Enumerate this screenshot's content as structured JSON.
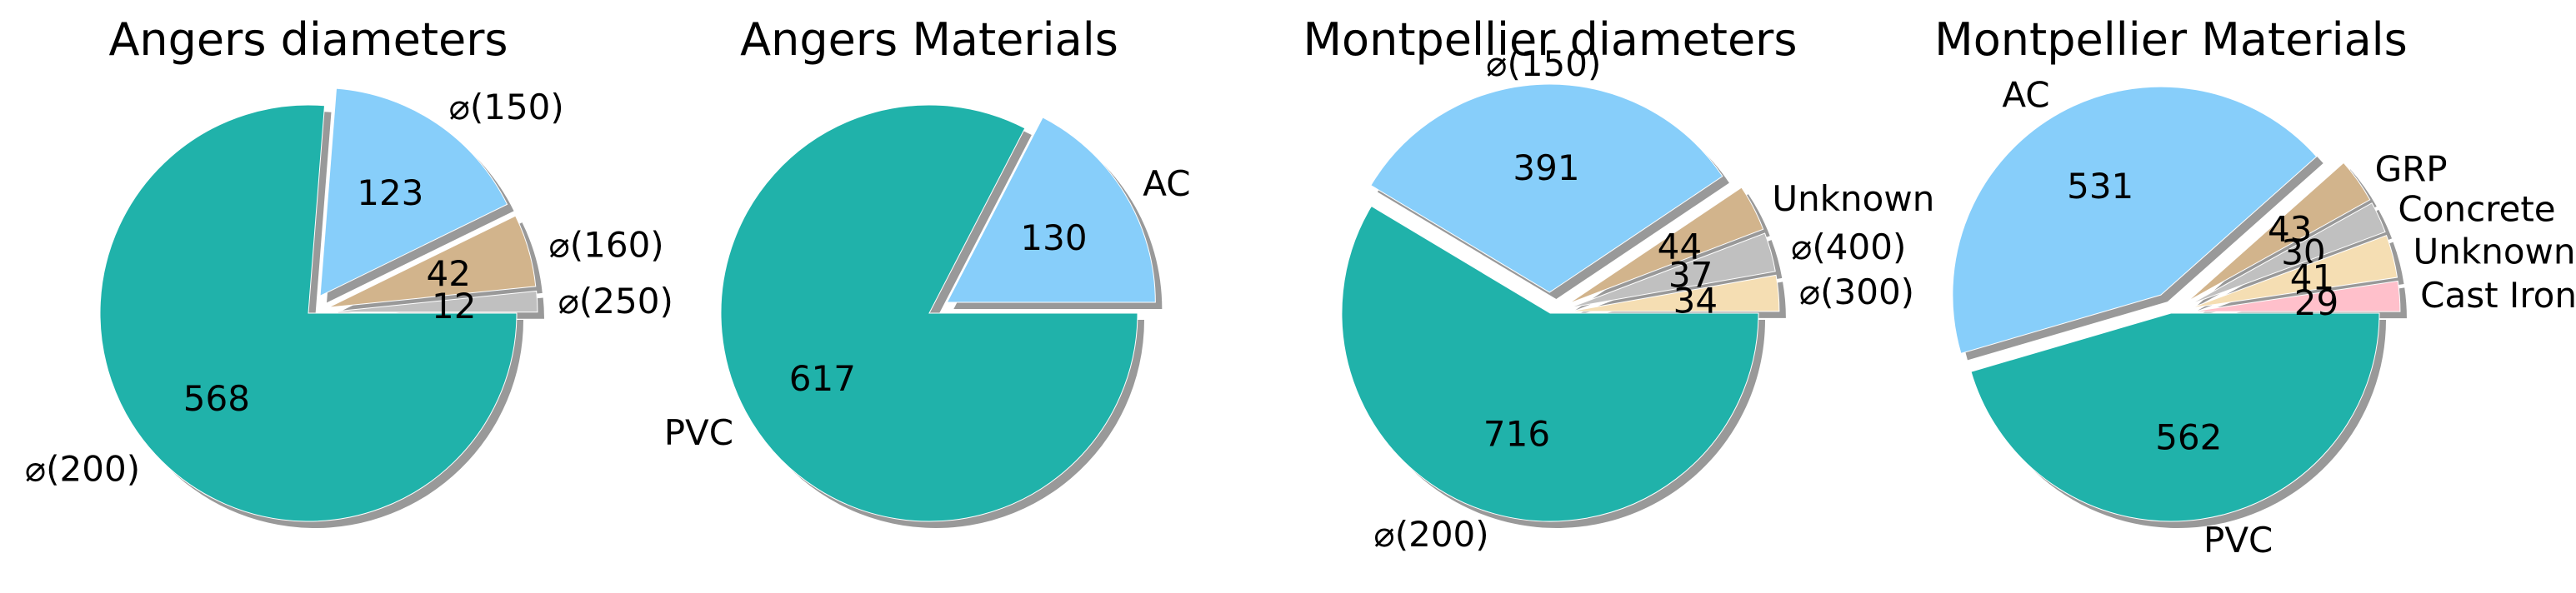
{
  "chart_data": [
    {
      "type": "pie",
      "title": "Angers diameters",
      "slices": [
        {
          "label": "⌀(200)",
          "value": 568,
          "color": "#20b2aa",
          "explode": false
        },
        {
          "label": "⌀(150)",
          "value": 123,
          "color": "#87cefa",
          "explode": true
        },
        {
          "label": "⌀(160)",
          "value": 42,
          "color": "#d2b48c",
          "explode": true
        },
        {
          "label": "⌀(250)",
          "value": 12,
          "color": "#c0c0c0",
          "explode": true
        }
      ]
    },
    {
      "type": "pie",
      "title": "Angers Materials",
      "slices": [
        {
          "label": "PVC",
          "value": 617,
          "color": "#20b2aa",
          "explode": false
        },
        {
          "label": "AC",
          "value": 130,
          "color": "#87cefa",
          "explode": true
        }
      ]
    },
    {
      "type": "pie",
      "title": "Montpellier diameters",
      "slices": [
        {
          "label": "⌀(200)",
          "value": 716,
          "color": "#20b2aa",
          "explode": false
        },
        {
          "label": "⌀(150)",
          "value": 391,
          "color": "#87cefa",
          "explode": true
        },
        {
          "label": "Unknown",
          "value": 44,
          "color": "#d2b48c",
          "explode": true
        },
        {
          "label": "⌀(400)",
          "value": 37,
          "color": "#c0c0c0",
          "explode": true
        },
        {
          "label": "⌀(300)",
          "value": 34,
          "color": "#f5deb3",
          "explode": true
        }
      ]
    },
    {
      "type": "pie",
      "title": "Montpellier Materials",
      "slices": [
        {
          "label": "PVC",
          "value": 562,
          "color": "#20b2aa",
          "explode": false
        },
        {
          "label": "AC",
          "value": 531,
          "color": "#87cefa",
          "explode": true
        },
        {
          "label": "GRP",
          "value": 43,
          "color": "#d2b48c",
          "explode": true
        },
        {
          "label": "Concrete",
          "value": 30,
          "color": "#c0c0c0",
          "explode": true
        },
        {
          "label": "Unknown",
          "value": 41,
          "color": "#f5deb3",
          "explode": true
        },
        {
          "label": "Cast Iron",
          "value": 29,
          "color": "#ffc0cb",
          "explode": true
        }
      ]
    }
  ],
  "shadow_color": "#999999"
}
